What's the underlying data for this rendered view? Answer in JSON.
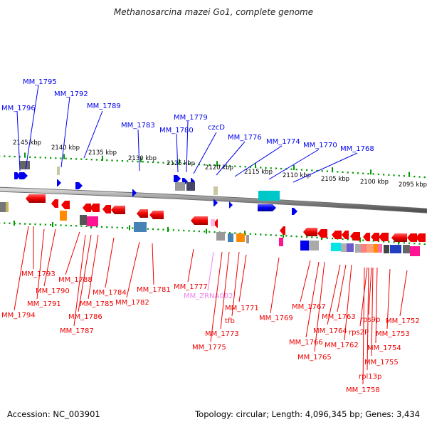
{
  "title": "Methanosarcina mazei Go1, complete genome",
  "footer": {
    "accession": "Accession: NC_003901",
    "summary": "Topology: circular; Length: 4,096,345 bp; Genes: 3,434"
  },
  "colors": {
    "forward_gene": "#0000ee",
    "reverse_gene": "#ee0000",
    "rna_gene": "#ee82ee",
    "backbone": "#888888",
    "tick": "#009900"
  },
  "scale_ticks": [
    "2145 kbp",
    "2140 kbp",
    "2135 kbp",
    "2130 kbp",
    "2125 kbp",
    "2120 kbp",
    "2115 kbp",
    "2110 kbp",
    "2105 kbp",
    "2100 kbp",
    "2095 kbp"
  ],
  "forward_genes": [
    "MM_1795",
    "MM_1796",
    "MM_1792",
    "MM_1789",
    "MM_1783",
    "MM_1779",
    "MM_1780",
    "czcD",
    "MM_1776",
    "MM_1774",
    "MM_1770",
    "MM_1768"
  ],
  "reverse_genes": [
    "MM_1793",
    "MM_1794",
    "MM_1790",
    "MM_1791",
    "MM_1788",
    "MM_1786",
    "MM_1785",
    "MM_1787",
    "MM_1784",
    "MM_1782",
    "MM_1781",
    "MM_1777",
    "MM_ZRNA002",
    "MM_1773",
    "MM_1775",
    "tfb",
    "MM_1771",
    "MM_1769",
    "MM_1767",
    "MM_1766",
    "MM_1765",
    "MM_1764",
    "MM_1763",
    "MM_1762",
    "rps2P",
    "rps9p",
    "MM_1754",
    "MM_1755",
    "rpl13p",
    "MM_1758",
    "MM_1752",
    "MM_1753"
  ]
}
